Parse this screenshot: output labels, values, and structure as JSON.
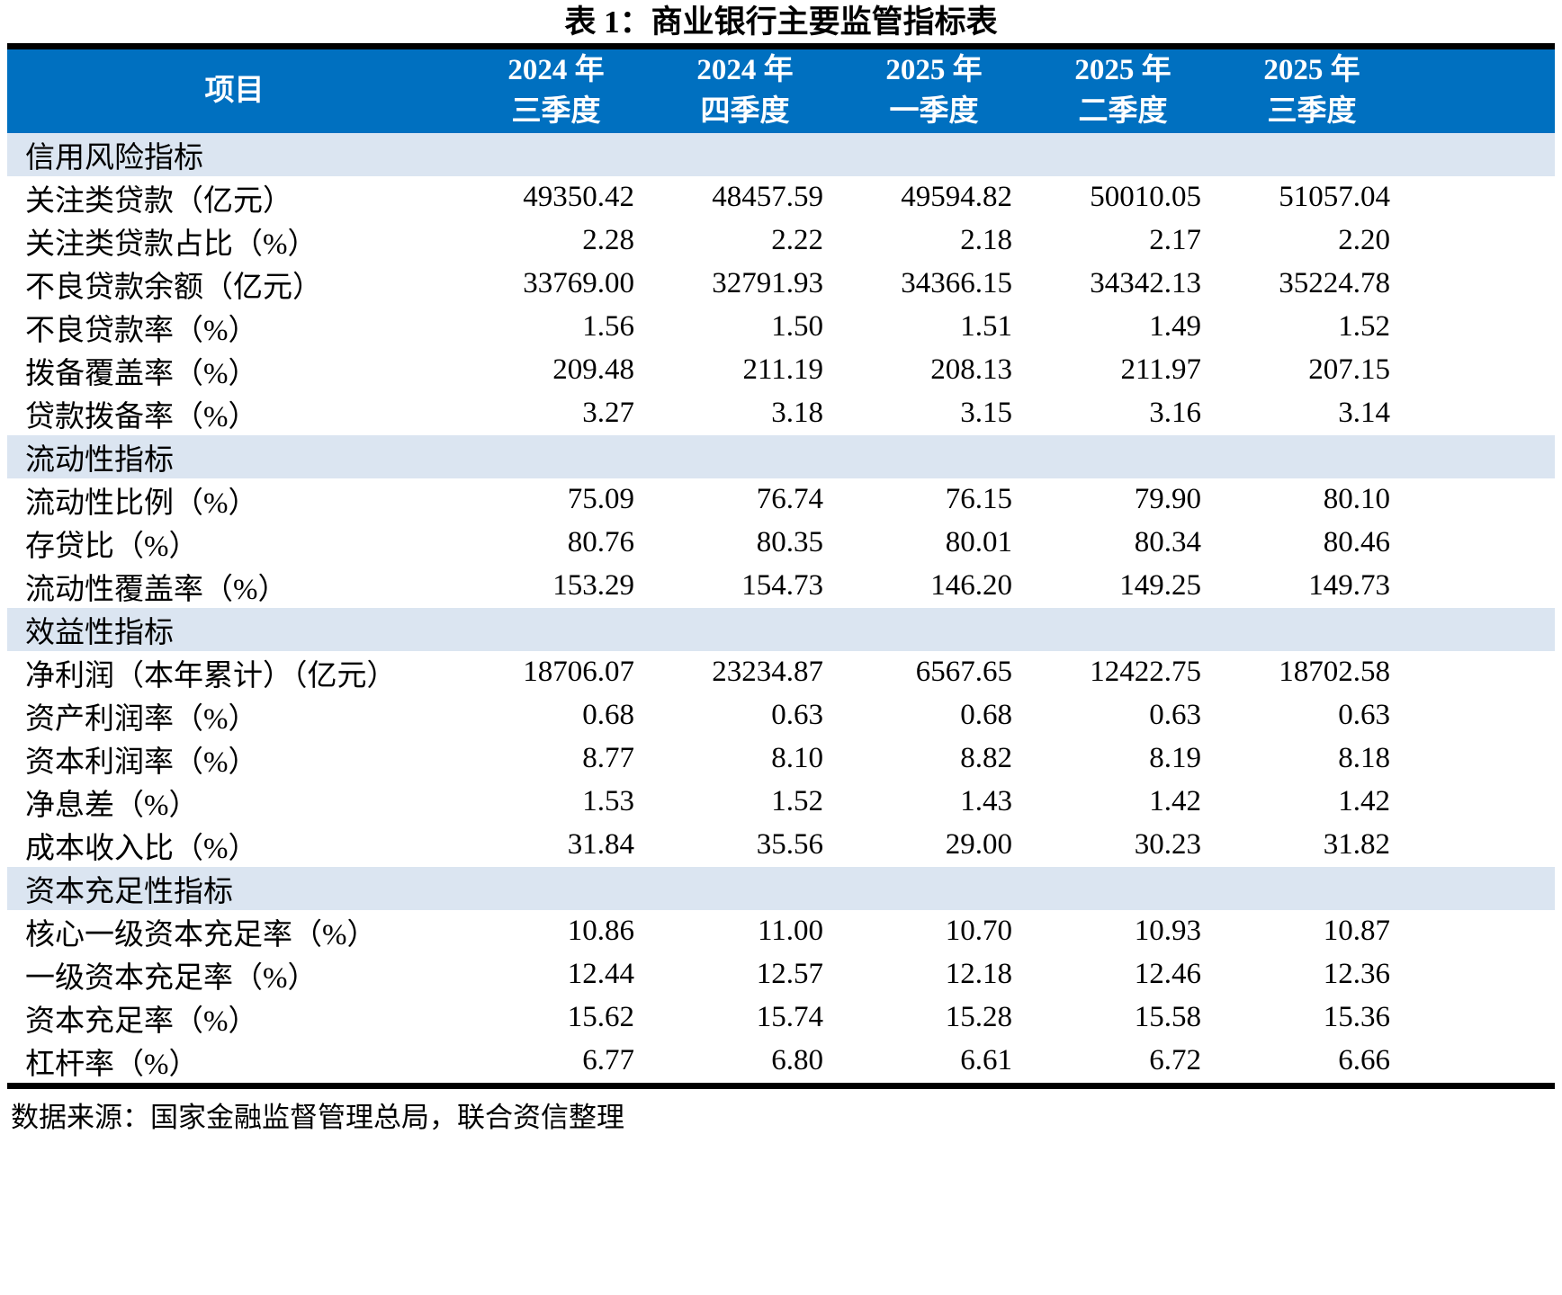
{
  "title": "表 1：商业银行主要监管指标表",
  "colors": {
    "header_bg": "#0070C0",
    "header_text": "#FFFFFF",
    "section_bg": "#DBE5F1",
    "border": "#000000"
  },
  "table": {
    "header": {
      "item_label": "项目",
      "period_columns": [
        {
          "line1": "2024 年",
          "line2": "三季度"
        },
        {
          "line1": "2024 年",
          "line2": "四季度"
        },
        {
          "line1": "2025 年",
          "line2": "一季度"
        },
        {
          "line1": "2025 年",
          "line2": "二季度"
        },
        {
          "line1": "2025 年",
          "line2": "三季度"
        }
      ]
    },
    "sections": [
      {
        "name": "信用风险指标",
        "rows": [
          {
            "label": "关注类贷款（亿元）",
            "values": [
              "49350.42",
              "48457.59",
              "49594.82",
              "50010.05",
              "51057.04"
            ]
          },
          {
            "label": "关注类贷款占比（%）",
            "values": [
              "2.28",
              "2.22",
              "2.18",
              "2.17",
              "2.20"
            ]
          },
          {
            "label": "不良贷款余额（亿元）",
            "values": [
              "33769.00",
              "32791.93",
              "34366.15",
              "34342.13",
              "35224.78"
            ]
          },
          {
            "label": "不良贷款率（%）",
            "values": [
              "1.56",
              "1.50",
              "1.51",
              "1.49",
              "1.52"
            ]
          },
          {
            "label": "拨备覆盖率（%）",
            "values": [
              "209.48",
              "211.19",
              "208.13",
              "211.97",
              "207.15"
            ]
          },
          {
            "label": "贷款拨备率（%）",
            "values": [
              "3.27",
              "3.18",
              "3.15",
              "3.16",
              "3.14"
            ]
          }
        ]
      },
      {
        "name": "流动性指标",
        "rows": [
          {
            "label": "流动性比例（%）",
            "values": [
              "75.09",
              "76.74",
              "76.15",
              "79.90",
              "80.10"
            ]
          },
          {
            "label": "存贷比（%）",
            "values": [
              "80.76",
              "80.35",
              "80.01",
              "80.34",
              "80.46"
            ]
          },
          {
            "label": "流动性覆盖率（%）",
            "values": [
              "153.29",
              "154.73",
              "146.20",
              "149.25",
              "149.73"
            ]
          }
        ]
      },
      {
        "name": "效益性指标",
        "rows": [
          {
            "label": "净利润（本年累计）（亿元）",
            "values": [
              "18706.07",
              "23234.87",
              "6567.65",
              "12422.75",
              "18702.58"
            ]
          },
          {
            "label": "资产利润率（%）",
            "values": [
              "0.68",
              "0.63",
              "0.68",
              "0.63",
              "0.63"
            ]
          },
          {
            "label": "资本利润率（%）",
            "values": [
              "8.77",
              "8.10",
              "8.82",
              "8.19",
              "8.18"
            ]
          },
          {
            "label": "净息差（%）",
            "values": [
              "1.53",
              "1.52",
              "1.43",
              "1.42",
              "1.42"
            ]
          },
          {
            "label": "成本收入比（%）",
            "values": [
              "31.84",
              "35.56",
              "29.00",
              "30.23",
              "31.82"
            ]
          }
        ]
      },
      {
        "name": "资本充足性指标",
        "rows": [
          {
            "label": "核心一级资本充足率（%）",
            "values": [
              "10.86",
              "11.00",
              "10.70",
              "10.93",
              "10.87"
            ]
          },
          {
            "label": "一级资本充足率（%）",
            "values": [
              "12.44",
              "12.57",
              "12.18",
              "12.46",
              "12.36"
            ]
          },
          {
            "label": "资本充足率（%）",
            "values": [
              "15.62",
              "15.74",
              "15.28",
              "15.58",
              "15.36"
            ]
          },
          {
            "label": "杠杆率（%）",
            "values": [
              "6.77",
              "6.80",
              "6.61",
              "6.72",
              "6.66"
            ]
          }
        ]
      }
    ]
  },
  "footer": {
    "source_note": "数据来源：国家金融监督管理总局，联合资信整理"
  }
}
